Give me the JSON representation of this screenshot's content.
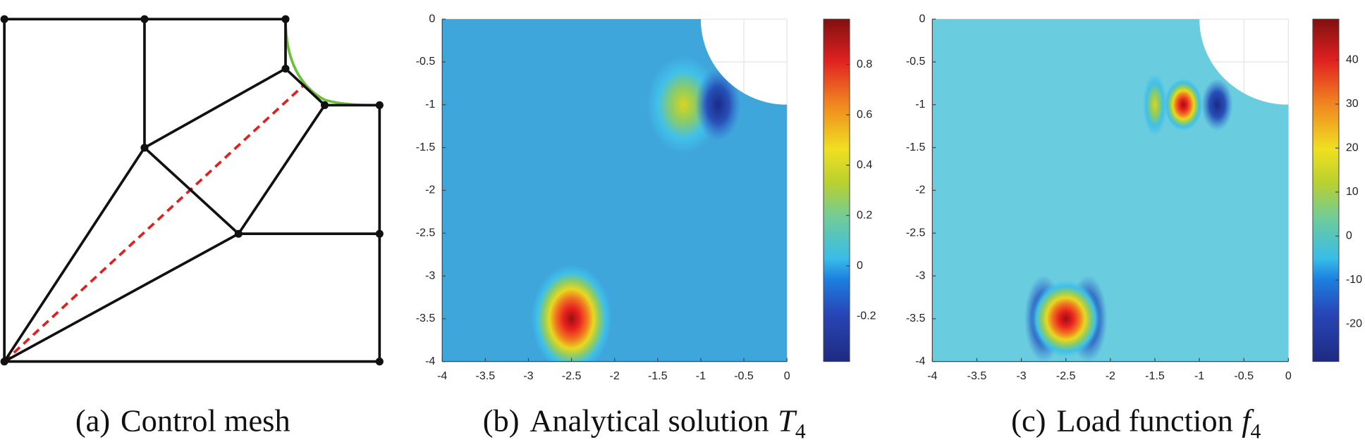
{
  "figure": {
    "panel_a": {
      "caption": {
        "label": "(a)",
        "text": "Control mesh"
      }
    }
  },
  "chart_data": [
    {
      "type": "contour",
      "caption": {
        "label": "(b)",
        "text": "Analytical solution",
        "symbol": "T",
        "subscript": "4"
      },
      "xlim": [
        -4,
        0
      ],
      "ylim": [
        -4,
        0
      ],
      "xticks": [
        -4,
        -3.5,
        -3,
        -2.5,
        -2,
        -1.5,
        -1,
        -0.5,
        0
      ],
      "yticks": [
        0,
        -0.5,
        -1,
        -1.5,
        -2,
        -2.5,
        -3,
        -3.5,
        -4
      ],
      "color": "#3fa6dc",
      "grid": true,
      "colorbar": {
        "clim": [
          -0.38,
          0.98
        ],
        "ticks": [
          -0.2,
          0,
          0.2,
          0.4,
          0.6,
          0.8
        ]
      }
    },
    {
      "type": "contour",
      "caption": {
        "label": "(c)",
        "text": "Load function",
        "symbol": "f",
        "subscript": "4"
      },
      "xlim": [
        -4,
        0
      ],
      "ylim": [
        -4,
        0
      ],
      "xticks": [
        -4,
        -3.5,
        -3,
        -2.5,
        -2,
        -1.5,
        -1,
        -0.5,
        0
      ],
      "yticks": [
        0,
        -0.5,
        -1,
        -1.5,
        -2,
        -2.5,
        -3,
        -3.5,
        -4
      ],
      "color": "#6accdf",
      "grid": true,
      "colorbar": {
        "clim": [
          -28.5,
          49.3
        ],
        "ticks": [
          -20,
          -10,
          0,
          10,
          20,
          30,
          40
        ]
      }
    }
  ]
}
